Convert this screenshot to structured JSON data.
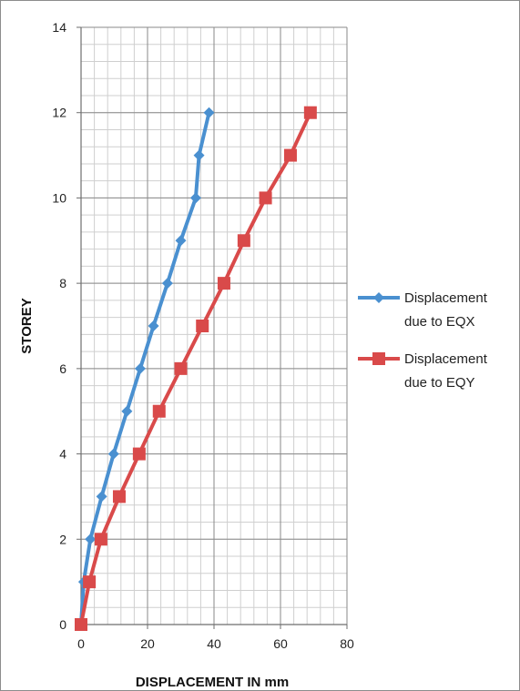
{
  "chart_data": {
    "type": "line",
    "title": "",
    "xlabel": "DISPLACEMENT IN mm",
    "ylabel": "STOREY",
    "xlim": [
      0,
      80
    ],
    "ylim": [
      0,
      14
    ],
    "xticks": [
      0,
      20,
      40,
      60,
      80
    ],
    "yticks": [
      0,
      2,
      4,
      6,
      8,
      10,
      12,
      14
    ],
    "grid": true,
    "legend_position": "right",
    "series": [
      {
        "name_lines": [
          "Displacement",
          "due to EQX"
        ],
        "color": "#4a90d0",
        "marker": "diamond",
        "x": [
          0,
          0.8,
          2.8,
          6.2,
          9.8,
          13.8,
          17.8,
          21.8,
          26,
          30,
          34.5,
          35.5,
          38.5
        ],
        "y": [
          0,
          1,
          2,
          3,
          4,
          5,
          6,
          7,
          8,
          9,
          10,
          11,
          12
        ]
      },
      {
        "name_lines": [
          "Displacement",
          "due to EQY"
        ],
        "color": "#d94a4a",
        "marker": "square",
        "x": [
          0,
          2.5,
          6,
          11.5,
          17.5,
          23.5,
          30,
          36.5,
          43,
          49,
          55.5,
          63,
          69
        ],
        "y": [
          0,
          1,
          2,
          3,
          4,
          5,
          6,
          7,
          8,
          9,
          10,
          11,
          12
        ]
      }
    ]
  }
}
